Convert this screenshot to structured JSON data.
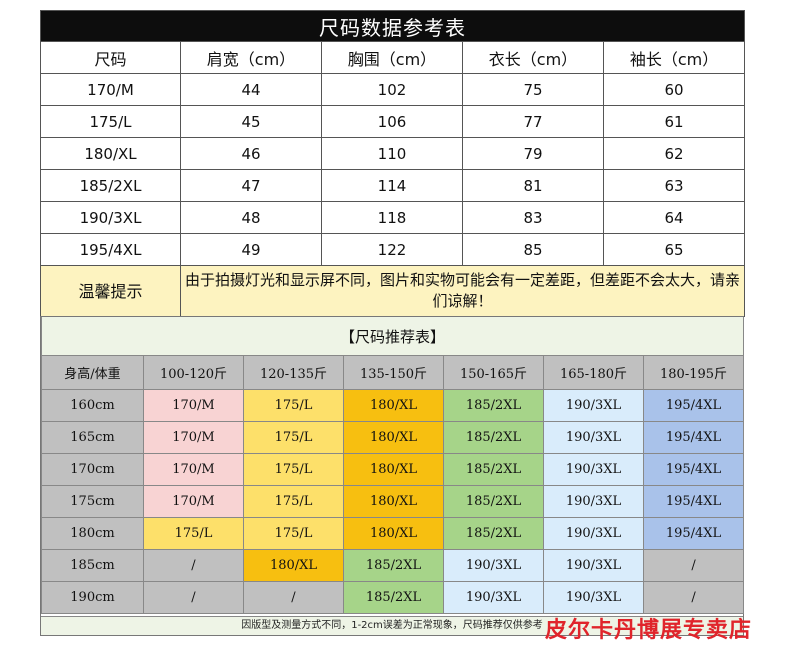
{
  "size_table": {
    "title": "尺码数据参考表",
    "headers": [
      "尺码",
      "肩宽（cm）",
      "胸围（cm）",
      "衣长（cm）",
      "袖长（cm）"
    ],
    "rows": [
      [
        "170/M",
        "44",
        "102",
        "75",
        "60"
      ],
      [
        "175/L",
        "45",
        "106",
        "77",
        "61"
      ],
      [
        "180/XL",
        "46",
        "110",
        "79",
        "62"
      ],
      [
        "185/2XL",
        "47",
        "114",
        "81",
        "63"
      ],
      [
        "190/3XL",
        "48",
        "118",
        "83",
        "64"
      ],
      [
        "195/4XL",
        "49",
        "122",
        "85",
        "65"
      ]
    ],
    "tip_label": "温馨提示",
    "tip_text": "由于拍摄灯光和显示屏不同，图片和实物可能会有一定差距，但差距不会太大，请亲们谅解！"
  },
  "recommend_table": {
    "title": "【尺码推荐表】",
    "headers": [
      "身高/体重",
      "100-120斤",
      "120-135斤",
      "135-150斤",
      "150-165斤",
      "165-180斤",
      "180-195斤"
    ],
    "rows": [
      [
        "160cm",
        "170/M",
        "175/L",
        "180/XL",
        "185/2XL",
        "190/3XL",
        "195/4XL"
      ],
      [
        "165cm",
        "170/M",
        "175/L",
        "180/XL",
        "185/2XL",
        "190/3XL",
        "195/4XL"
      ],
      [
        "170cm",
        "170/M",
        "175/L",
        "180/XL",
        "185/2XL",
        "190/3XL",
        "195/4XL"
      ],
      [
        "175cm",
        "170/M",
        "175/L",
        "180/XL",
        "185/2XL",
        "190/3XL",
        "195/4XL"
      ],
      [
        "180cm",
        "175/L",
        "175/L",
        "180/XL",
        "185/2XL",
        "190/3XL",
        "195/4XL"
      ],
      [
        "185cm",
        "/",
        "180/XL",
        "185/2XL",
        "190/3XL",
        "190/3XL",
        "/"
      ],
      [
        "190cm",
        "/",
        "/",
        "185/2XL",
        "190/3XL",
        "190/3XL",
        "/"
      ]
    ],
    "footer": "因版型及测量方式不同，1-2cm误差为正常现象，尺码推荐仅供参考"
  },
  "store_mark": "皮尔卡丹博展专卖店",
  "colors": {
    "title_bar": "#0d0d0d",
    "tip_bg": "#fdf3c0",
    "M": "#f8d3d3",
    "L": "#fde06a",
    "XL": "#f7bf10",
    "2XL": "#a6d489",
    "3XL": "#d9ecfb",
    "4XL": "#a9c2ea",
    "gray": "#c0c0c0",
    "store_mark": "#e0242b"
  }
}
